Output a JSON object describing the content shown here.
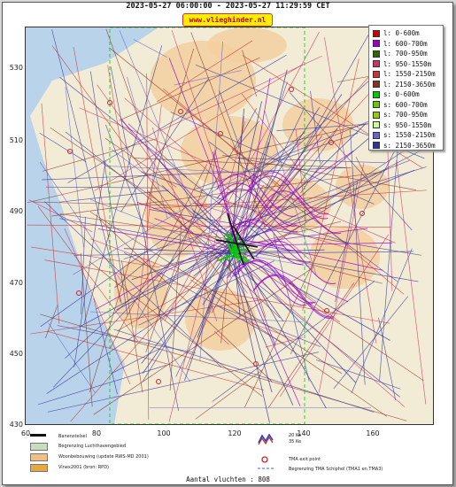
{
  "header": {
    "title": "2023-05-27 06:00:00 - 2023-05-27 11:29:59 CET",
    "site": "www.vlieghinder.nl"
  },
  "axes": {
    "y_ticks": [
      "530",
      "510",
      "490",
      "470",
      "450",
      "430"
    ],
    "x_ticks": [
      "60",
      "80",
      "100",
      "120",
      "140",
      "160"
    ]
  },
  "legend": [
    {
      "label": "l: 0-600m",
      "color": "#cc0000"
    },
    {
      "label": "l: 600-700m",
      "color": "#9900cc"
    },
    {
      "label": "l: 700-950m",
      "color": "#336600"
    },
    {
      "label": "l: 950-1550m",
      "color": "#cc3366"
    },
    {
      "label": "l: 1550-2150m",
      "color": "#cc3333"
    },
    {
      "label": "l: 2150-3650m",
      "color": "#883322"
    },
    {
      "label": "s: 0-600m",
      "color": "#00cc00"
    },
    {
      "label": "s: 600-700m",
      "color": "#66cc00"
    },
    {
      "label": "s: 700-950m",
      "color": "#99cc00"
    },
    {
      "label": "s: 950-1550m",
      "color": "#ccff99"
    },
    {
      "label": "s: 1550-2150m",
      "color": "#6666cc"
    },
    {
      "label": "s: 2150-3650m",
      "color": "#333399"
    }
  ],
  "map_key": {
    "runway": "Banenstelsel",
    "airport_boundary": "Begrenzing Luchthavengebied",
    "housing": "Woonbebouwing (update RWS-MD 2001)",
    "vinex": "Vinex2001 (bron: RPD)",
    "kv20": "20 Ke",
    "kv35": "35 Ke",
    "tma_exit": "TMA exit point",
    "tma_border": "Begrenzing TMA Schiphol (TMA1 en TMA3)"
  },
  "footer": {
    "count": "Aantal vluchten : 808"
  },
  "colors": {
    "water": "#b9d4ea",
    "land": "#f2ecd6",
    "urban": "#f3cfa0"
  }
}
